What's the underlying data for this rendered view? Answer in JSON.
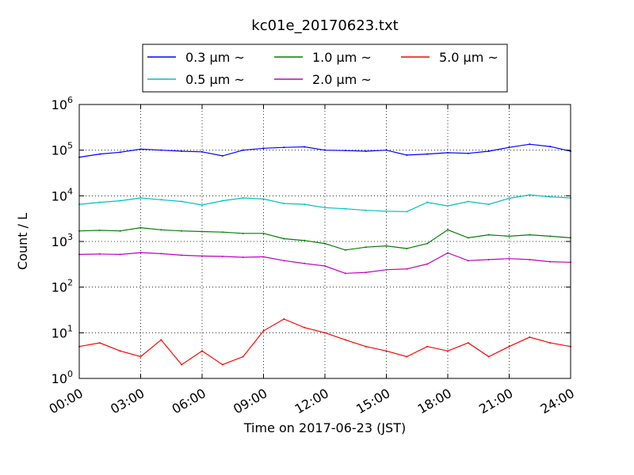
{
  "chart_data": {
    "type": "line",
    "title": "kc01e_20170623.txt",
    "xlabel": "Time on 2017-06-23 (JST)",
    "ylabel": "Count / L",
    "yscale": "log",
    "ylim": [
      1,
      1000000
    ],
    "xlim": [
      "2017-06-23 00:00",
      "2017-06-24 00:00"
    ],
    "xticks": [
      "00:00",
      "03:00",
      "06:00",
      "09:00",
      "12:00",
      "15:00",
      "18:00",
      "21:00",
      "24:00"
    ],
    "yticks": [
      {
        "base": "10",
        "exp": "0"
      },
      {
        "base": "10",
        "exp": "1"
      },
      {
        "base": "10",
        "exp": "2"
      },
      {
        "base": "10",
        "exp": "3"
      },
      {
        "base": "10",
        "exp": "4"
      },
      {
        "base": "10",
        "exp": "5"
      },
      {
        "base": "10",
        "exp": "6"
      }
    ],
    "grid": true,
    "legend_position": "top",
    "x": [
      "00:00",
      "01:00",
      "02:00",
      "03:00",
      "04:00",
      "05:00",
      "06:00",
      "07:00",
      "08:00",
      "09:00",
      "10:00",
      "11:00",
      "12:00",
      "13:00",
      "14:00",
      "15:00",
      "16:00",
      "17:00",
      "18:00",
      "19:00",
      "20:00",
      "21:00",
      "22:00",
      "23:00",
      "24:00"
    ],
    "series": [
      {
        "name": "0.3 μm ~",
        "color": "#0000ff",
        "values": [
          70000,
          82000,
          90000,
          105000,
          100000,
          95000,
          92000,
          75000,
          100000,
          110000,
          115000,
          118000,
          100000,
          98000,
          95000,
          100000,
          78000,
          82000,
          88000,
          85000,
          95000,
          115000,
          135000,
          120000,
          95000
        ]
      },
      {
        "name": "0.5 μm ~",
        "color": "#00bfbf",
        "values": [
          6500,
          7200,
          7800,
          9000,
          8200,
          7500,
          6300,
          7800,
          9000,
          8500,
          6800,
          6500,
          5500,
          5200,
          4800,
          4600,
          4500,
          7200,
          6000,
          7500,
          6500,
          8800,
          10500,
          9500,
          9000
        ]
      },
      {
        "name": "1.0 μm ~",
        "color": "#008000",
        "values": [
          1700,
          1750,
          1700,
          2000,
          1800,
          1700,
          1650,
          1600,
          1500,
          1500,
          1150,
          1050,
          900,
          650,
          750,
          800,
          700,
          900,
          1800,
          1200,
          1400,
          1300,
          1400,
          1300,
          1200
        ]
      },
      {
        "name": "2.0 μm ~",
        "color": "#bf00bf",
        "values": [
          520,
          530,
          520,
          570,
          540,
          500,
          480,
          470,
          450,
          460,
          380,
          330,
          290,
          200,
          210,
          240,
          250,
          320,
          560,
          380,
          400,
          420,
          400,
          360,
          350
        ]
      },
      {
        "name": "5.0 μm ~",
        "color": "#ff0000",
        "values": [
          5,
          6,
          4,
          3,
          7,
          2,
          4,
          2,
          3,
          11,
          20,
          13,
          10,
          7,
          5,
          4,
          3,
          5,
          4,
          6,
          3,
          5,
          8,
          6,
          5
        ]
      }
    ]
  }
}
